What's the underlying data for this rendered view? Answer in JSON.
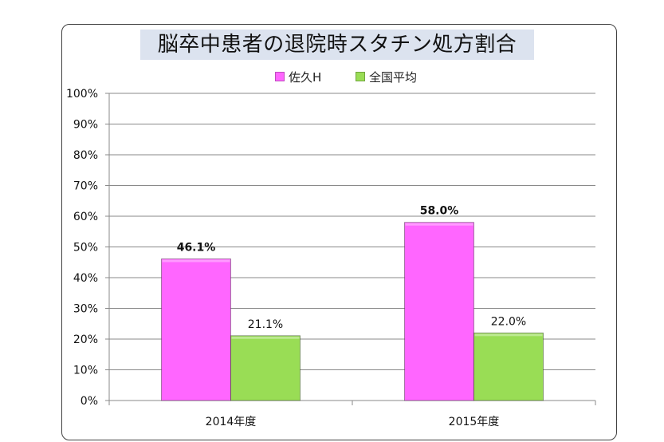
{
  "chart_data": {
    "type": "bar",
    "title": "脳卒中患者の退院時スタチン処方割合",
    "categories": [
      "2014年度",
      "2015年度"
    ],
    "series": [
      {
        "name": "佐久H",
        "values": [
          46.1,
          58.0
        ],
        "labels": [
          "46.1%",
          "58.0%"
        ],
        "color": "#ff66ff"
      },
      {
        "name": "全国平均",
        "values": [
          21.1,
          22.0
        ],
        "labels": [
          "21.1%",
          "22.0%"
        ],
        "color": "#99dd55"
      }
    ],
    "yticks": [
      "0%",
      "10%",
      "20%",
      "30%",
      "40%",
      "50%",
      "60%",
      "70%",
      "80%",
      "90%",
      "100%"
    ],
    "ylim": [
      0,
      100
    ],
    "grid": true,
    "legend_position": "top"
  }
}
